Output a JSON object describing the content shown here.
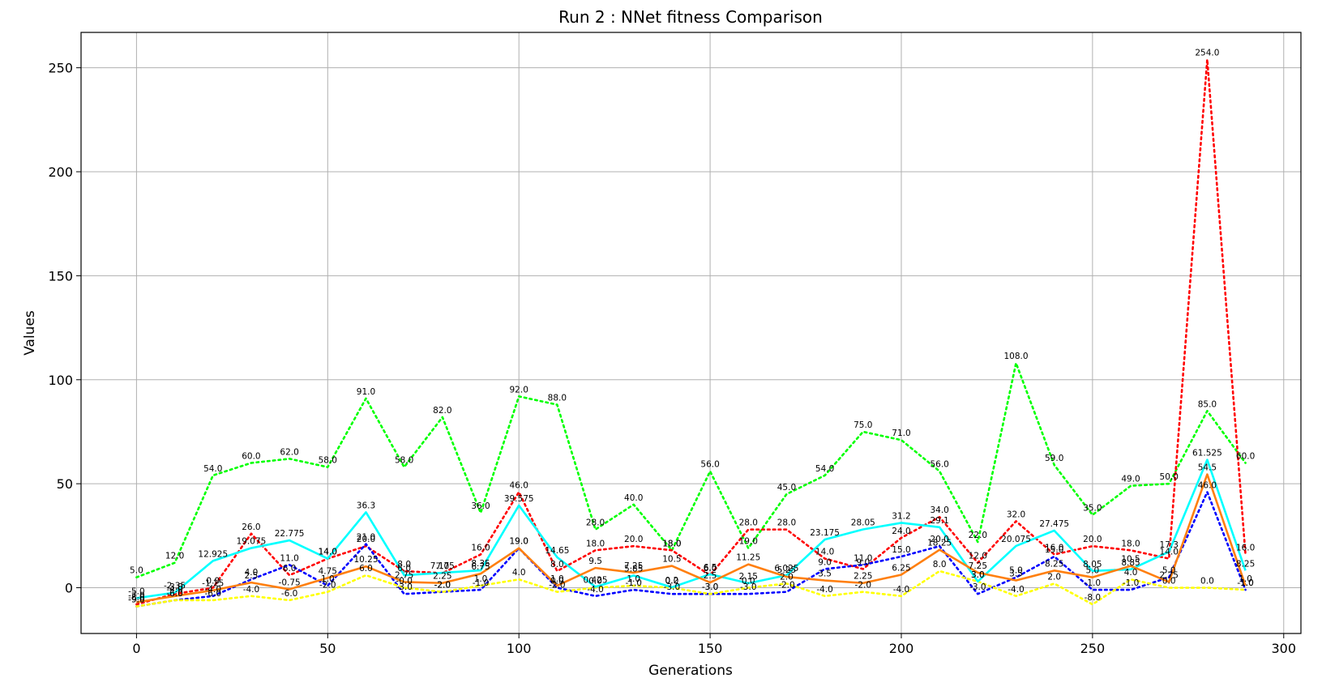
{
  "chart_data": {
    "type": "line",
    "title": "Run 2 : NNet fitness Comparison",
    "xlabel": "Generations",
    "ylabel": "Values",
    "xlim": [
      -14.5,
      304.5
    ],
    "ylim": [
      -22,
      267
    ],
    "xticks": [
      0,
      50,
      100,
      150,
      200,
      250,
      300
    ],
    "yticks": [
      0,
      50,
      100,
      150,
      200,
      250
    ],
    "grid": true,
    "x": [
      0,
      10,
      20,
      30,
      40,
      50,
      60,
      70,
      80,
      90,
      100,
      110,
      120,
      130,
      140,
      150,
      160,
      170,
      180,
      190,
      200,
      210,
      220,
      230,
      240,
      250,
      260,
      270,
      280,
      290
    ],
    "series": [
      {
        "color": "#00ff00",
        "style": "dotted",
        "values": [
          5.0,
          12.0,
          54.0,
          60.0,
          62.0,
          58.0,
          91.0,
          58.0,
          82.0,
          36.0,
          92.0,
          88.0,
          28.0,
          40.0,
          18.0,
          56.0,
          19.0,
          45.0,
          54.0,
          75.0,
          71.0,
          56.0,
          22.0,
          108.0,
          59.0,
          35.0,
          49.0,
          50.0,
          85.0,
          60.0
        ]
      },
      {
        "color": "#ff0000",
        "style": "dotted",
        "values": [
          -8.0,
          -3.0,
          0.0,
          26.0,
          6.0,
          14.0,
          20.0,
          8.0,
          7.0,
          16.0,
          46.0,
          8.0,
          18.0,
          20.0,
          18.0,
          6.0,
          28.0,
          28.0,
          14.0,
          9.0,
          24.0,
          34.0,
          12.0,
          32.0,
          16.0,
          20.0,
          18.0,
          14.0,
          254.0,
          16.0
        ]
      },
      {
        "color": "#0000ff",
        "style": "dotted",
        "values": [
          -9.0,
          -6.0,
          -4.0,
          4.0,
          11.0,
          1.0,
          21.0,
          -3.0,
          -2.0,
          -1.0,
          19.0,
          0.0,
          -4.0,
          -1.0,
          -3.0,
          -3.0,
          -3.0,
          -2.0,
          9.0,
          11.0,
          15.0,
          20.0,
          -3.0,
          5.0,
          15.0,
          -1.0,
          -1.0,
          5.0,
          46.0,
          -1.0
        ]
      },
      {
        "color": "#ffff00",
        "style": "dotted",
        "values": [
          -9.0,
          -6.0,
          -6.0,
          -4.0,
          -6.0,
          -2.0,
          6.0,
          -0.0,
          -2.0,
          1.0,
          4.0,
          -2.0,
          0.0,
          1.0,
          0.0,
          -3.0,
          0.0,
          2.0,
          -4.0,
          -2.0,
          -4.0,
          8.0,
          3.0,
          -4.0,
          2.0,
          -8.0,
          4.0,
          0.0,
          0.0,
          -1.0
        ]
      },
      {
        "color": "#00ffff",
        "style": "solid",
        "values": [
          -5.0,
          -2.35,
          12.925,
          19.075,
          22.775,
          14.0,
          36.3,
          6.0,
          7.175,
          8.35,
          39.575,
          14.65,
          0.425,
          5.85,
          0.2,
          6.5,
          2.15,
          6.025,
          23.175,
          28.05,
          31.2,
          29.1,
          3.0,
          20.075,
          27.475,
          8.05,
          8.85,
          17.3,
          61.525,
          8.25
        ]
      },
      {
        "color": "#ff7f0e",
        "style": "solid",
        "values": [
          -7.0,
          -4.0,
          -1.25,
          2.5,
          -0.75,
          4.75,
          10.25,
          2.75,
          2.25,
          6.75,
          19.0,
          1.0,
          9.5,
          7.25,
          10.5,
          2.5,
          11.25,
          5.25,
          3.5,
          2.25,
          6.25,
          18.25,
          7.25,
          3.5,
          8.25,
          5.0,
          10.5,
          2.75,
          54.5,
          1.0
        ]
      }
    ],
    "data_labels": [
      [
        "5.0",
        "12.0",
        "54.0",
        "60.0",
        "62.0",
        "58.0",
        "91.0",
        "58.0",
        "82.0",
        "36.0",
        "92.0",
        "88.0",
        "28.0",
        "40.0",
        "18.0",
        "56.0",
        "19.0",
        "45.0",
        "54.0",
        "75.0",
        "71.0",
        "56.0",
        "22.0",
        "108.0",
        "59.0",
        "35.0",
        "49.0",
        "50.0",
        "85.0",
        "60.0"
      ],
      [
        "-8.0",
        "-3.0",
        "0.0",
        "26.0",
        "6.0",
        "14.0",
        "20.0",
        "8.0",
        "7.0",
        "16.0",
        "46.0",
        "8.0",
        "18.0",
        "20.0",
        "18.0",
        "6.0",
        "28.0",
        "28.0",
        "14.0",
        "9.0",
        "24.0",
        "34.0",
        "12.0",
        "32.0",
        "16.0",
        "20.0",
        "18.0",
        "14.0",
        "254.0",
        "16.0"
      ],
      [
        "-9.0",
        "-6.0",
        "-4.0",
        "4.0",
        "11.0",
        "1.0",
        "21.0",
        "-3.0",
        "-2.0",
        "-1.0",
        "19.0",
        "0.0",
        "-4.0",
        "-1.0",
        "-3.0",
        "-3.0",
        "-3.0",
        "-2.0",
        "9.0",
        "11.0",
        "15.0",
        "20.0",
        "-3.0",
        "5.0",
        "15.0",
        "-1.0",
        "-1.0",
        "5.0",
        "46.0",
        "-1.0"
      ],
      [
        "-9.0",
        "-6.0",
        "-6.0",
        "-4.0",
        "-6.0",
        "-2.0",
        "6.0",
        "-0.0",
        "-2.0",
        "1.0",
        "4.0",
        "-2.0",
        "0.0",
        "1.0",
        "0.0",
        "-3.0",
        "0.0",
        "2.0",
        "-4.0",
        "-2.0",
        "-4.0",
        "8.0",
        "3.0",
        "-4.0",
        "2.0",
        "-8.0",
        "4.0",
        "0.0",
        "0.0",
        "-1.0"
      ],
      [
        "-5.0",
        "-2.35",
        "12.925",
        "19.075",
        "22.775",
        "14.0",
        "36.3",
        "6.0",
        "7.175",
        "8.35",
        "39.575",
        "14.65",
        "0.425",
        "5.85",
        "0.2",
        "6.5",
        "2.15",
        "6.025",
        "23.175",
        "28.05",
        "31.2",
        "29.1",
        "3.0",
        "20.075",
        "27.475",
        "8.05",
        "8.85",
        "17.3",
        "61.525",
        "8.25"
      ],
      [
        "-7.0",
        "-4.0",
        "-1.25",
        "2.5",
        "-0.75",
        "4.75",
        "10.25",
        "2.75",
        "2.25",
        "6.75",
        "19.0",
        "1.0",
        "9.5",
        "7.25",
        "10.5",
        "2.5",
        "11.25",
        "5.25",
        "3.5",
        "2.25",
        "6.25",
        "18.25",
        "7.25",
        "3.5",
        "8.25",
        "5.0",
        "10.5",
        "2.75",
        "54.5",
        "1.0"
      ]
    ]
  }
}
